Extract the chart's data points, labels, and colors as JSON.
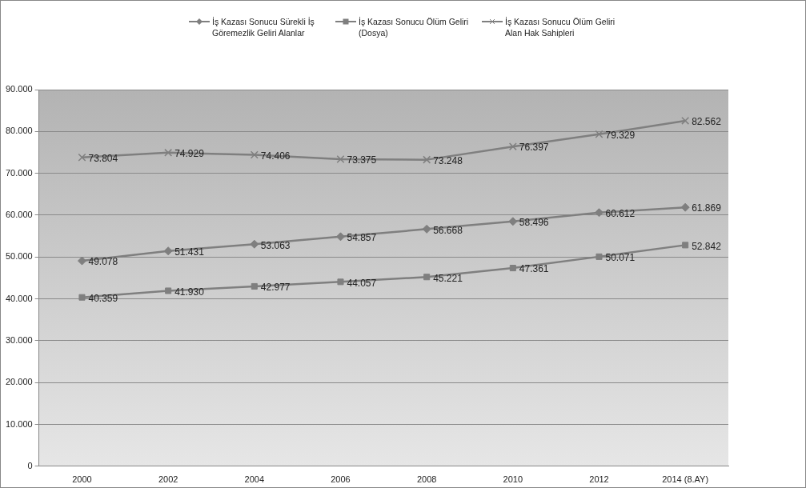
{
  "chart_data": {
    "type": "line",
    "categories": [
      "2000",
      "2002",
      "2004",
      "2006",
      "2008",
      "2010",
      "2012",
      "2014 (8.AY)"
    ],
    "series": [
      {
        "name": "İş Kazası Sonucu Sürekli İş Göremezlik Geliri Alanlar",
        "color": "#7f7f7f",
        "marker": "diamond",
        "values": [
          49078,
          51431,
          53063,
          54857,
          56668,
          58496,
          60612,
          61869
        ],
        "value_labels": [
          "49.078",
          "51.431",
          "53.063",
          "54.857",
          "56.668",
          "58.496",
          "60.612",
          "61.869"
        ]
      },
      {
        "name": "İş Kazası Sonucu Ölüm Geliri (Dosya)",
        "color": "#7f7f7f",
        "marker": "square",
        "values": [
          40359,
          41930,
          42977,
          44057,
          45221,
          47361,
          50071,
          52842
        ],
        "value_labels": [
          "40.359",
          "41.930",
          "42.977",
          "44.057",
          "45.221",
          "47.361",
          "50.071",
          "52.842"
        ]
      },
      {
        "name": "İş Kazası Sonucu Ölüm Geliri Alan Hak Sahipleri",
        "color": "#7f7f7f",
        "marker": "cross",
        "values": [
          73804,
          74929,
          74406,
          73375,
          73248,
          76397,
          79329,
          82562
        ],
        "value_labels": [
          "73.804",
          "74.929",
          "74.406",
          "73.375",
          "73.248",
          "76.397",
          "79.329",
          "82.562"
        ]
      }
    ],
    "ylim": [
      0,
      90000
    ],
    "yticks": [
      0,
      {
        "value": 10000,
        "label": "10.000"
      },
      {
        "value": 20000,
        "label": "20.000"
      },
      {
        "value": 30000,
        "label": "30.000"
      },
      {
        "value": 40000,
        "label": "40.000"
      },
      {
        "value": 50000,
        "label": "50.000"
      },
      {
        "value": 60000,
        "label": "60.000"
      },
      {
        "value": 70000,
        "label": "70.000"
      },
      {
        "value": 80000,
        "label": "80.000"
      },
      {
        "value": 90000,
        "label": "90.000"
      }
    ],
    "grid": "y",
    "legend": "top"
  }
}
